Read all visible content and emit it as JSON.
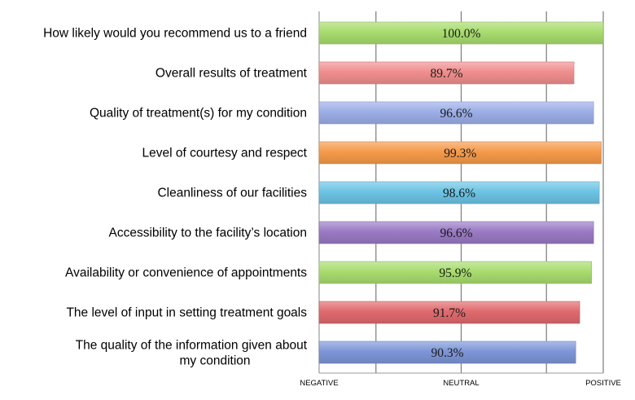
{
  "chart_data": {
    "type": "bar",
    "orientation": "horizontal",
    "categories": [
      "How likely would you recommend us to a friend",
      "Overall results of treatment",
      "Quality of  treatment(s) for my condition",
      "Level of courtesy and respect",
      "Cleanliness of our facilities",
      "Accessibility to the facility’s location",
      "Availability or convenience of appointments",
      "The level of input in setting treatment goals",
      "The quality of the information given about my condition"
    ],
    "values": [
      100.0,
      89.7,
      96.6,
      99.3,
      98.6,
      96.6,
      95.9,
      91.7,
      90.3
    ],
    "data_labels": [
      "100.0%",
      "89.7%",
      "96.6%",
      "99.3%",
      "98.6%",
      "96.6%",
      "95.9%",
      "91.7%",
      "90.3%"
    ],
    "bar_colors": [
      "#a8dc6e",
      "#f08e8e",
      "#9caee8",
      "#f59a4a",
      "#6cc4e4",
      "#9a7ac4",
      "#a8dc6e",
      "#e06a6e",
      "#7e96d8"
    ],
    "xlim": [
      0,
      100
    ],
    "x_ticks": [
      {
        "value": 0,
        "label": "NEGATIVE"
      },
      {
        "value": 20,
        "label": ""
      },
      {
        "value": 50,
        "label": "NEUTRAL"
      },
      {
        "value": 80,
        "label": ""
      },
      {
        "value": 100,
        "label": "POSITIVE"
      }
    ],
    "grid": true,
    "title": "",
    "xlabel": "",
    "ylabel": ""
  }
}
